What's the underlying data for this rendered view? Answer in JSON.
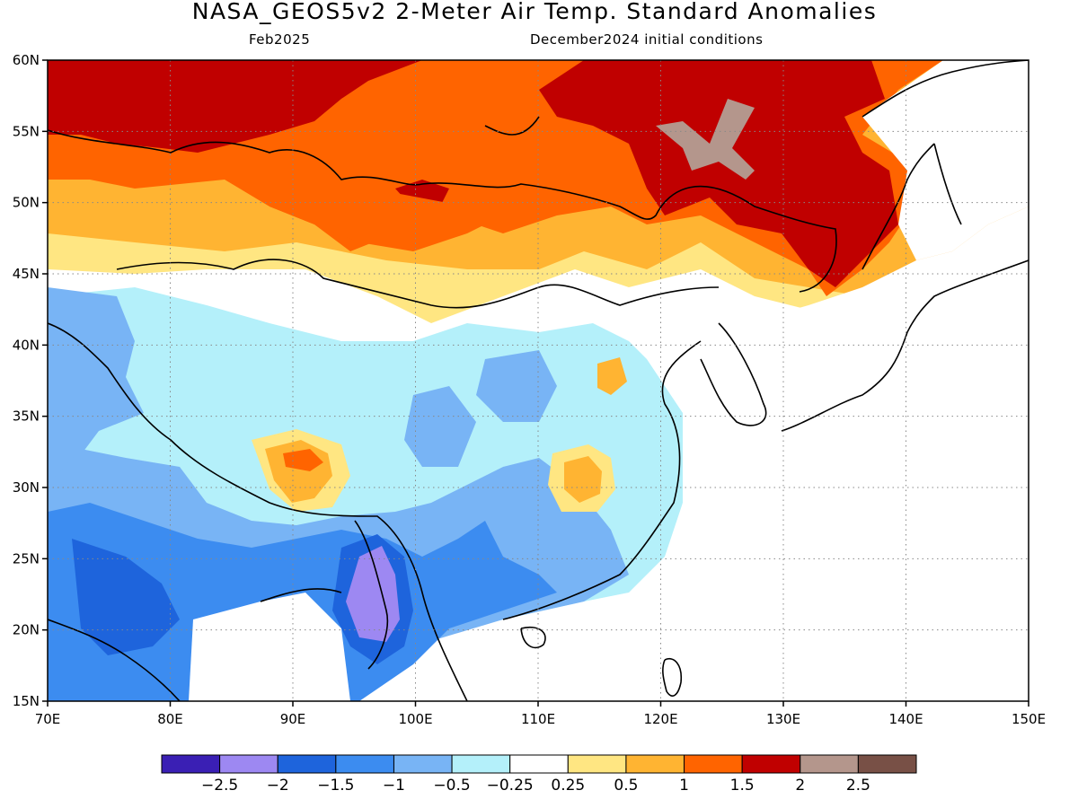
{
  "title": "NASA_GEOS5v2 2-Meter Air Temp. Standard Anomalies",
  "subtitle_left": "Feb2025",
  "subtitle_right": "December2024 initial conditions",
  "map": {
    "lon_range": [
      70,
      150
    ],
    "lat_range": [
      15,
      60
    ],
    "lon_ticks": [
      "70E",
      "80E",
      "90E",
      "100E",
      "110E",
      "120E",
      "130E",
      "140E",
      "150E"
    ],
    "lat_ticks": [
      "15N",
      "20N",
      "25N",
      "30N",
      "35N",
      "40N",
      "45N",
      "50N",
      "55N",
      "60N"
    ],
    "gridlines": "dotted",
    "masked_ocean_color": "#ffffff",
    "coastlines": "black"
  },
  "colorbar": {
    "colors": [
      "#3a1fb4",
      "#9d88f2",
      "#1e64dc",
      "#3c8cf0",
      "#78b4f5",
      "#b4f0fa",
      "#ffffff",
      "#ffe682",
      "#ffb432",
      "#ff6400",
      "#c00000",
      "#b4968c",
      "#785046"
    ],
    "labels": [
      "-2.5",
      "-2",
      "-1.5",
      "-1",
      "-0.5",
      "-0.25",
      "0.25",
      "0.5",
      "1",
      "1.5",
      "2",
      "2.5"
    ]
  }
}
